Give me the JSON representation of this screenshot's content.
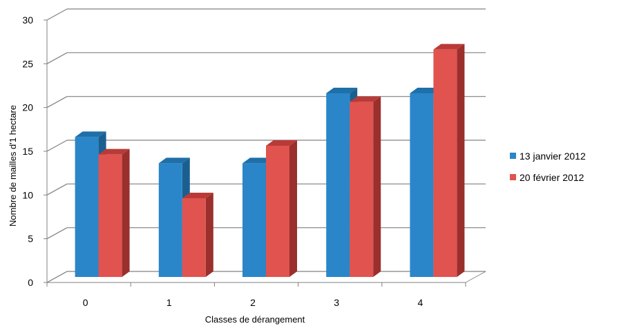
{
  "chart_data": {
    "type": "bar",
    "title": "",
    "xlabel": "Classes de dérangement",
    "ylabel": "Nombre de mailles d'1 hectare",
    "categories": [
      "0",
      "1",
      "2",
      "3",
      "4"
    ],
    "series": [
      {
        "name": "13 janvier 2012",
        "values": [
          16,
          13,
          13,
          21,
          21
        ],
        "color": "#2a86c8",
        "side_color": "#1b5f91",
        "top_color": "#1f6fa8"
      },
      {
        "name": "20 février 2012",
        "values": [
          14,
          9,
          15,
          20,
          26
        ],
        "color": "#e0534f",
        "side_color": "#9a2f2c",
        "top_color": "#b93b38"
      }
    ],
    "ylim": [
      0,
      30
    ],
    "yticks": [
      0,
      5,
      10,
      15,
      20,
      25,
      30
    ],
    "grid": true,
    "legend_position": "right",
    "style": "3d-clustered-column"
  }
}
